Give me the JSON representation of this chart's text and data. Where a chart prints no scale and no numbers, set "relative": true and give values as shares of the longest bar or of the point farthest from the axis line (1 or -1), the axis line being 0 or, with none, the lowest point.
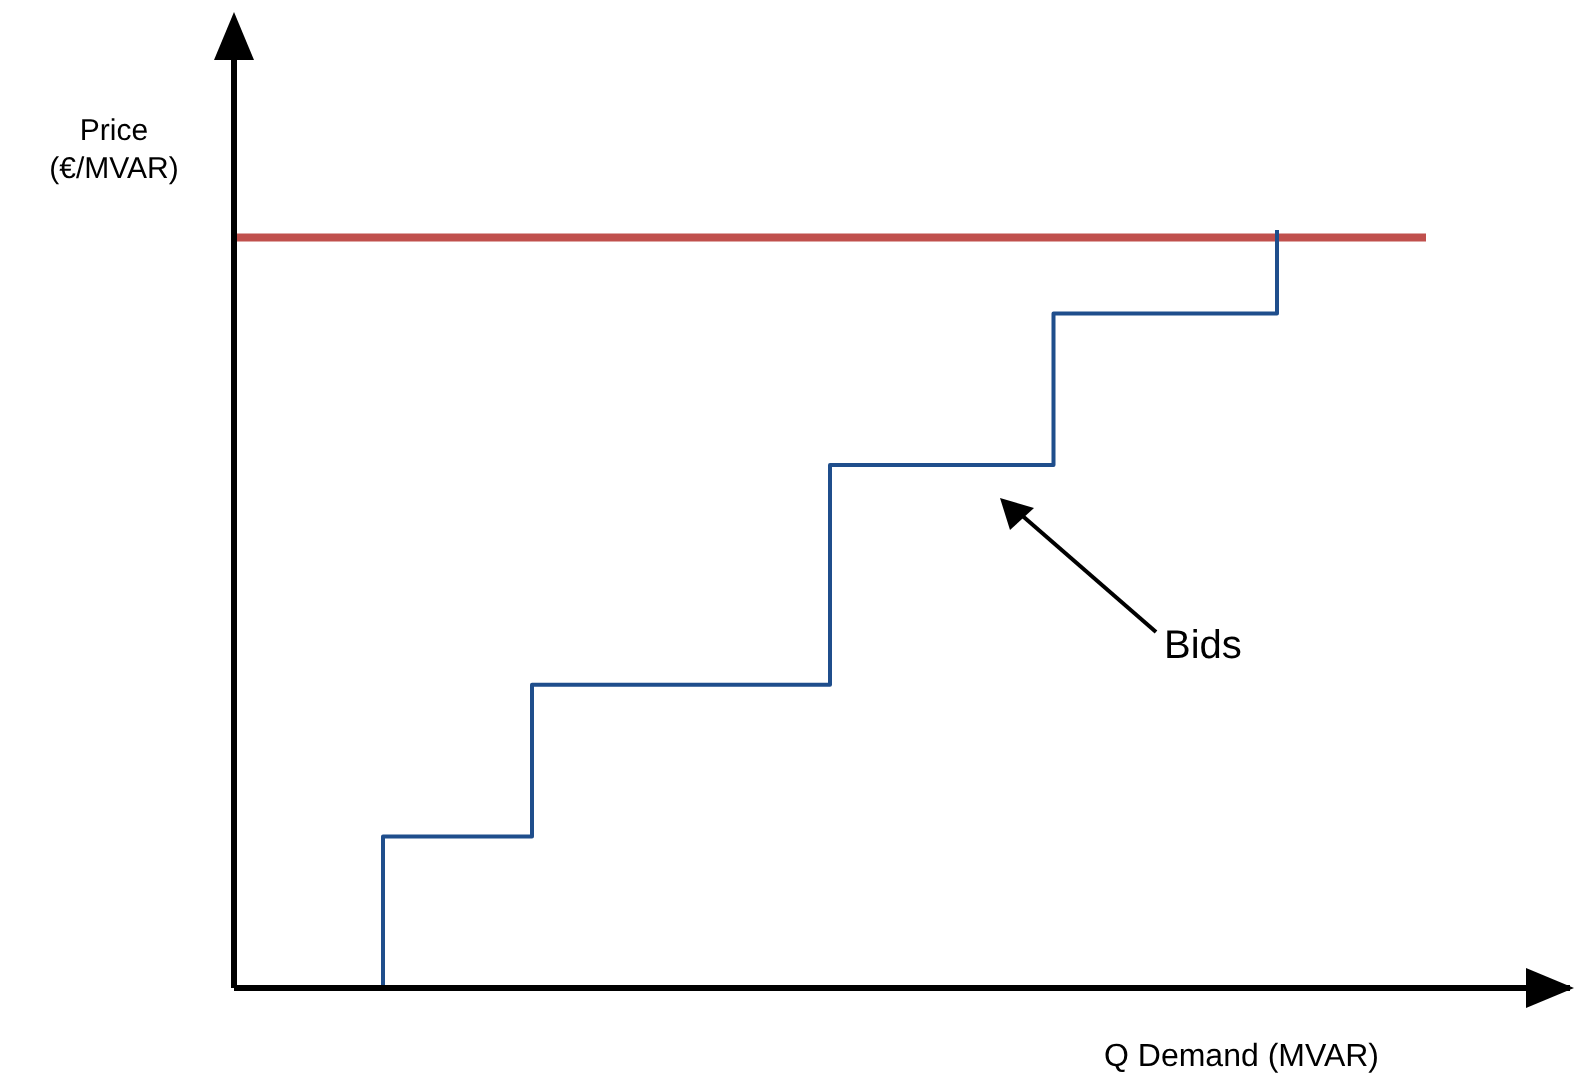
{
  "chart_data": {
    "type": "line",
    "relative": true,
    "xlabel": "Q Demand (MVAR)",
    "ylabel": "Price (€/MVAR)",
    "categories": [
      null,
      null,
      null,
      null,
      null,
      null,
      null,
      null,
      null,
      null,
      null,
      null,
      null,
      null,
      null,
      null,
      null
    ],
    "series": [
      {
        "type": "line",
        "color": "#c0504d",
        "values": [
          0.99,
          0.99,
          0.99,
          0.99,
          0.99,
          0.99,
          0.99,
          0.99,
          0.99,
          0.99,
          0.99,
          0.99,
          0.99,
          0.99,
          0.99,
          0.99,
          0.99
        ]
      },
      {
        "type": "step",
        "color": "#1f4e8c",
        "values": [
          null,
          0,
          0.2,
          null,
          0.4,
          null,
          null,
          null,
          0.69,
          null,
          null,
          0.89,
          null,
          null,
          1.0,
          null,
          null
        ]
      }
    ],
    "annotations": [
      "Bids"
    ],
    "marker": "none",
    "line_style": "solid"
  }
}
